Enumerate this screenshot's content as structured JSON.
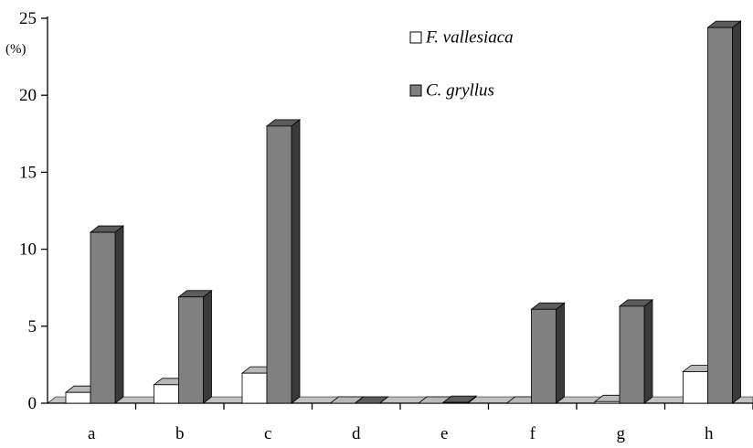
{
  "chart_data": {
    "type": "bar",
    "categories": [
      "a",
      "b",
      "c",
      "d",
      "e",
      "f",
      "g",
      "h"
    ],
    "series": [
      {
        "name": "F. vallesiaca",
        "color": "#ffffff",
        "values": [
          0.7,
          1.2,
          1.95,
          0.0,
          0.0,
          0.0,
          0.1,
          2.05
        ]
      },
      {
        "name": "C. gryllus",
        "color": "#808080",
        "values": [
          11.1,
          6.9,
          18.0,
          0.0,
          0.05,
          6.1,
          6.3,
          24.4
        ]
      }
    ],
    "y_unit": "(%)",
    "ylim": [
      0,
      25
    ],
    "yticks": [
      "0",
      "5",
      "10",
      "15",
      "20",
      "25"
    ],
    "title": "",
    "xlabel": "",
    "ylabel": "",
    "legend_position": "top-right",
    "style": "3d-bars",
    "grid": false
  }
}
